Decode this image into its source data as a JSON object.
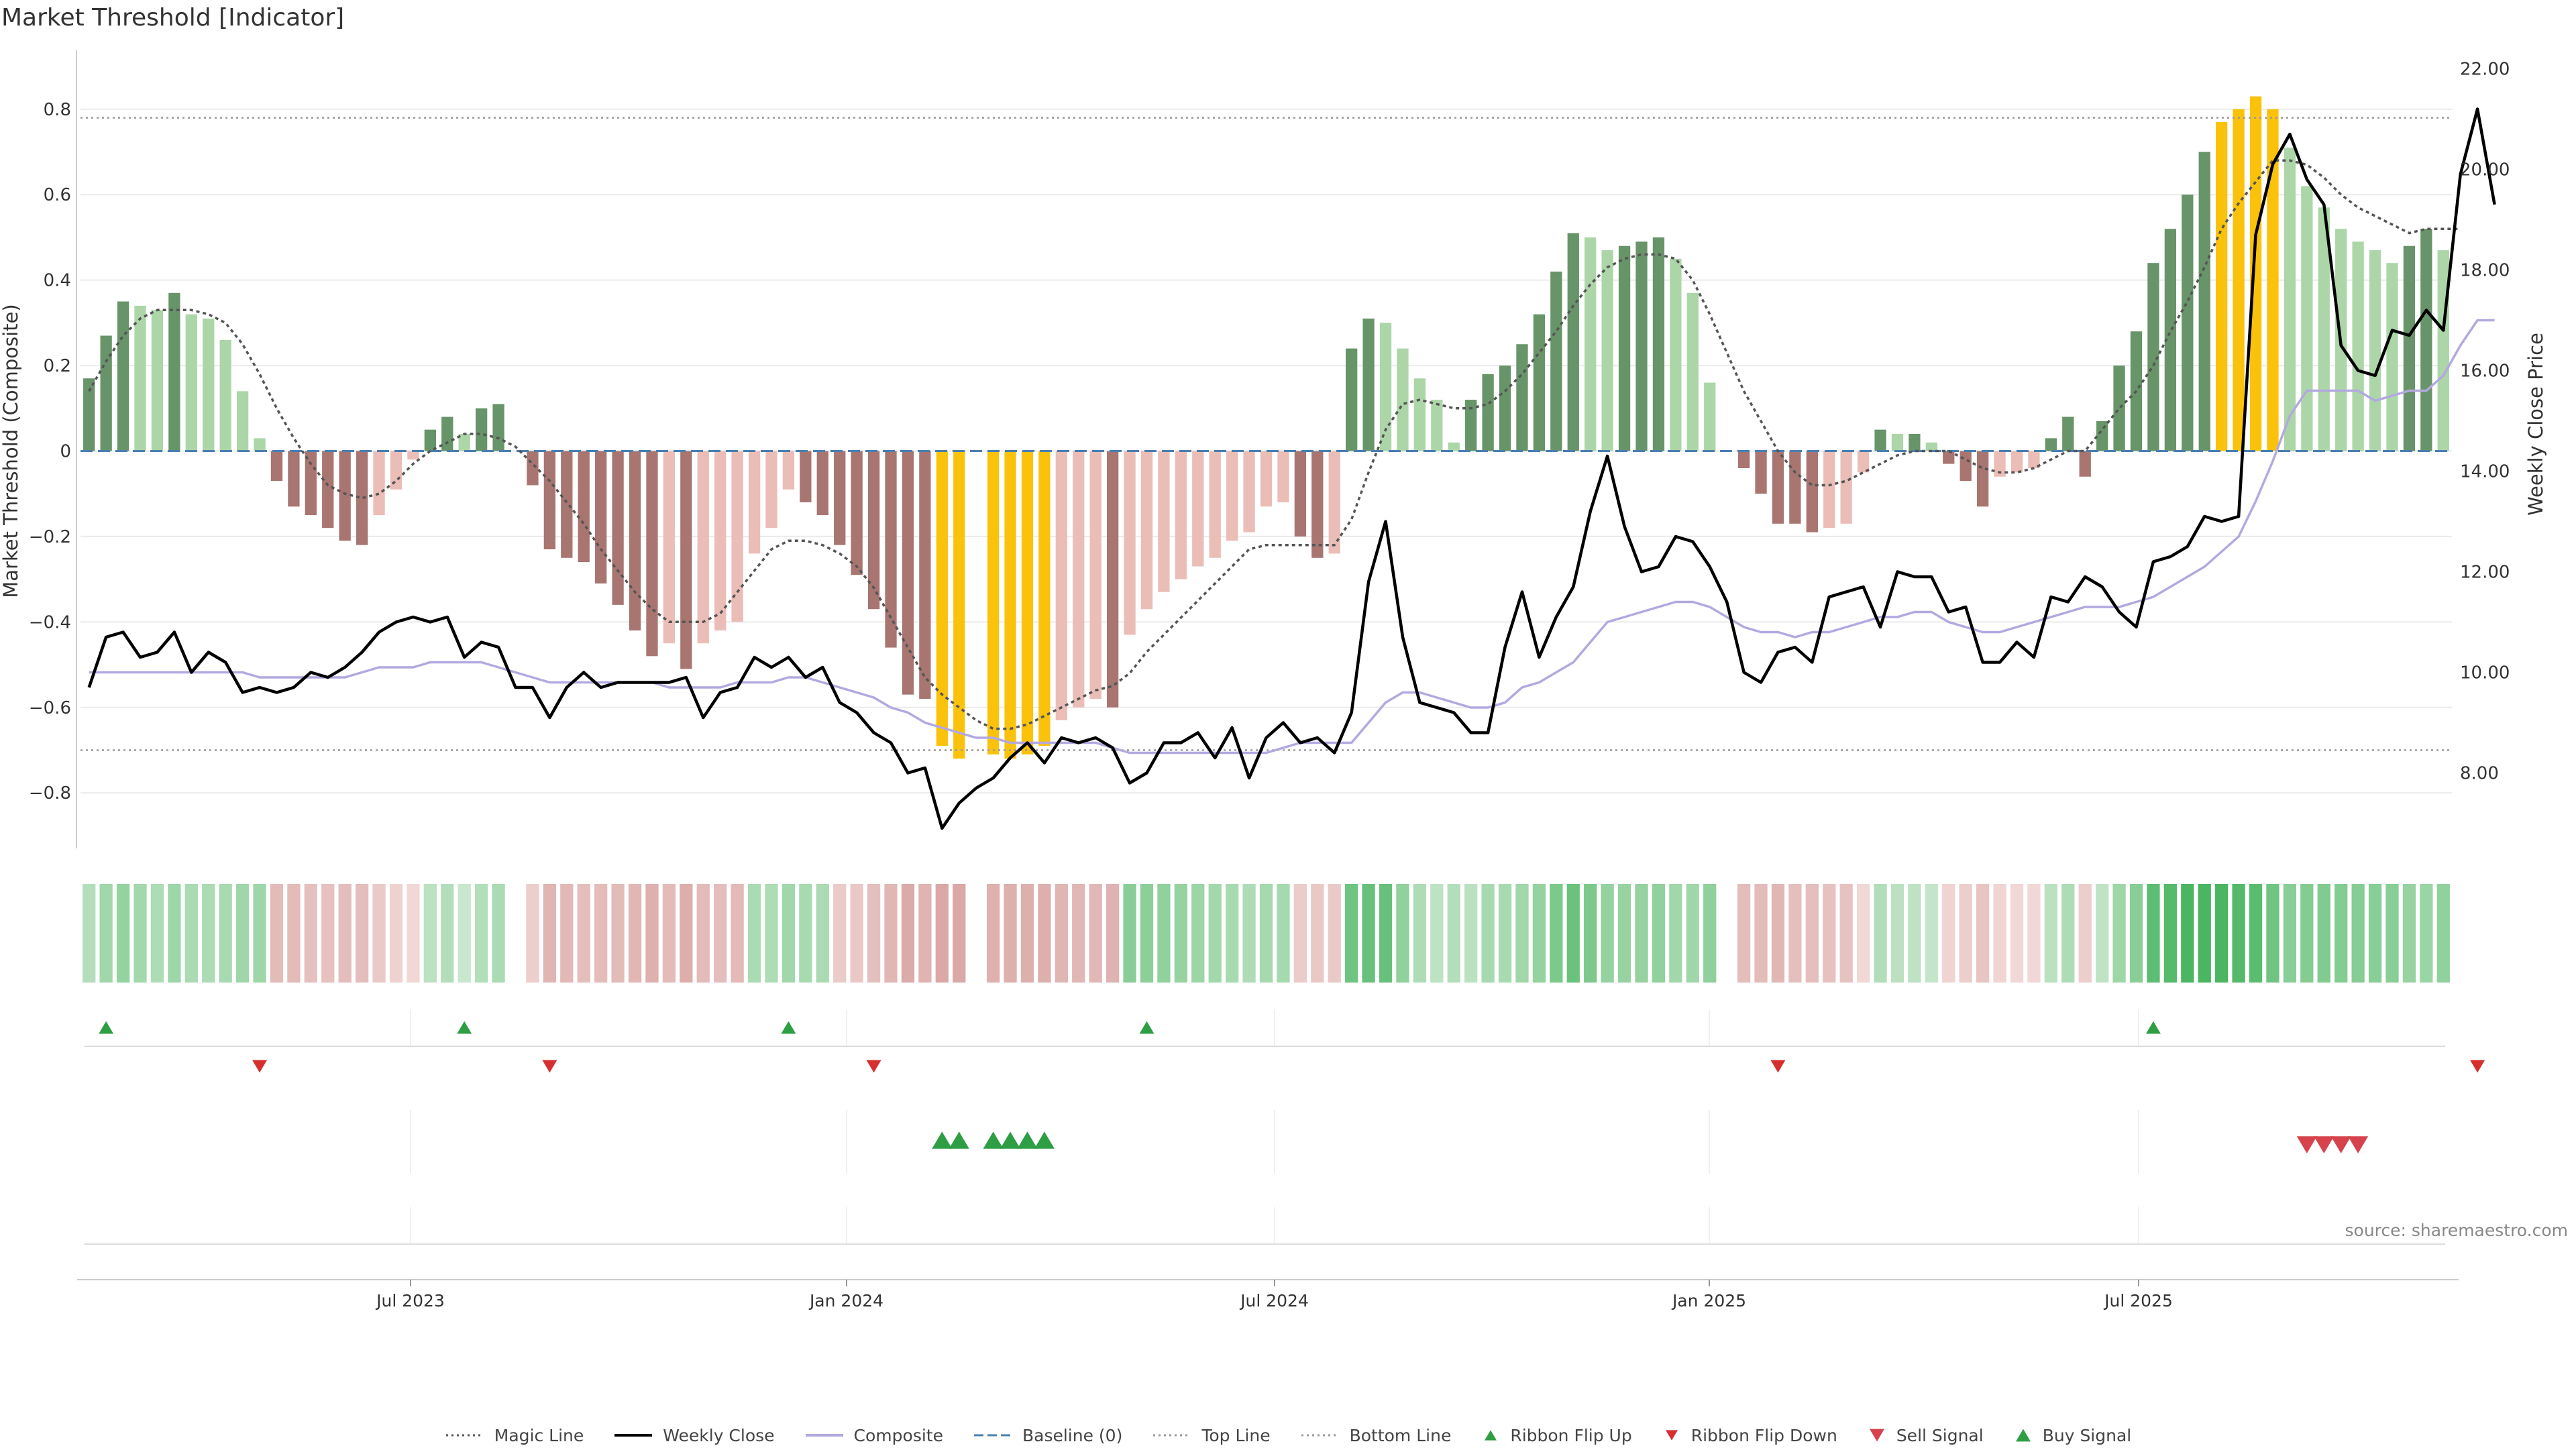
{
  "title": "Market Threshold [Indicator]",
  "source_text": "source: sharemaestro.com",
  "legend": [
    {
      "label": "Magic Line",
      "kind": "dotted",
      "color": "#555555"
    },
    {
      "label": "Weekly Close",
      "kind": "line",
      "color": "#000000"
    },
    {
      "label": "Composite",
      "kind": "line",
      "color": "#b3a8e0"
    },
    {
      "label": "Baseline (0)",
      "kind": "dashed",
      "color": "#4a7fb0"
    },
    {
      "label": "Top Line",
      "kind": "dotted",
      "color": "#999999"
    },
    {
      "label": "Bottom Line",
      "kind": "dotted",
      "color": "#999999"
    },
    {
      "label": "Ribbon Flip Up",
      "kind": "tri-up-small",
      "color": "#2e9e44"
    },
    {
      "label": "Ribbon Flip Down",
      "kind": "tri-down-small",
      "color": "#d62f2f"
    },
    {
      "label": "Sell Signal",
      "kind": "tri-down",
      "color": "#d6434d"
    },
    {
      "label": "Buy Signal",
      "kind": "tri-up",
      "color": "#2e9e44"
    }
  ],
  "chart_data": {
    "type": "bar",
    "ylabel": "Market Threshold (Composite)",
    "y2label": "Weekly Close Price",
    "ylim": [
      -0.93,
      0.93
    ],
    "y2lim": [
      6.5,
      22.3
    ],
    "yticks": [
      "0.8",
      "0.6",
      "0.4",
      "0.2",
      "0",
      "−0.2",
      "−0.4",
      "−0.6",
      "−0.8"
    ],
    "y2ticks": [
      "22.00",
      "20.00",
      "18.00",
      "16.00",
      "14.00",
      "12.00",
      "10.00",
      "8.00"
    ],
    "x_dates": [
      "Jul 2023",
      "Jan 2024",
      "Jul 2024",
      "Jan 2025",
      "Jul 2025"
    ],
    "top_line": 0.78,
    "bottom_line": -0.7,
    "composite_bars": [
      0.17,
      0.27,
      0.35,
      0.34,
      0.33,
      0.37,
      0.32,
      0.31,
      0.26,
      0.14,
      0.03,
      -0.07,
      -0.13,
      -0.15,
      -0.18,
      -0.21,
      -0.22,
      -0.15,
      -0.09,
      -0.02,
      0.05,
      0.08,
      0.04,
      0.1,
      0.11,
      0.0,
      -0.08,
      -0.23,
      -0.25,
      -0.26,
      -0.31,
      -0.36,
      -0.42,
      -0.48,
      -0.45,
      -0.51,
      -0.45,
      -0.42,
      -0.4,
      -0.24,
      -0.18,
      -0.09,
      -0.12,
      -0.15,
      -0.22,
      -0.29,
      -0.37,
      -0.46,
      -0.57,
      -0.58,
      -0.69,
      -0.72,
      0.0,
      -0.71,
      -0.72,
      -0.71,
      -0.69,
      -0.63,
      -0.6,
      -0.58,
      -0.6,
      -0.43,
      -0.37,
      -0.33,
      -0.3,
      -0.27,
      -0.25,
      -0.21,
      -0.19,
      -0.13,
      -0.12,
      -0.2,
      -0.25,
      -0.24,
      0.24,
      0.31,
      0.3,
      0.24,
      0.17,
      0.12,
      0.02,
      0.12,
      0.18,
      0.2,
      0.25,
      0.32,
      0.42,
      0.51,
      0.5,
      0.47,
      0.48,
      0.49,
      0.5,
      0.45,
      0.37,
      0.16,
      0.0,
      -0.04,
      -0.1,
      -0.17,
      -0.17,
      -0.19,
      -0.18,
      -0.17,
      -0.05,
      0.05,
      0.04,
      0.04,
      0.02,
      -0.03,
      -0.07,
      -0.13,
      -0.06,
      -0.05,
      -0.04,
      0.03,
      0.08,
      -0.06,
      0.07,
      0.2,
      0.28,
      0.44,
      0.52,
      0.6,
      0.7,
      0.77,
      0.8,
      0.83,
      0.8,
      0.71,
      0.62,
      0.57,
      0.52,
      0.49,
      0.47,
      0.44,
      0.48,
      0.52,
      0.47
    ],
    "magic_line": [
      0.14,
      0.21,
      0.27,
      0.31,
      0.33,
      0.33,
      0.33,
      0.32,
      0.3,
      0.25,
      0.18,
      0.1,
      0.03,
      -0.03,
      -0.08,
      -0.1,
      -0.11,
      -0.1,
      -0.07,
      -0.03,
      0.0,
      0.02,
      0.04,
      0.04,
      0.03,
      0.01,
      -0.03,
      -0.07,
      -0.12,
      -0.17,
      -0.23,
      -0.28,
      -0.33,
      -0.37,
      -0.4,
      -0.4,
      -0.4,
      -0.38,
      -0.33,
      -0.28,
      -0.23,
      -0.21,
      -0.21,
      -0.22,
      -0.24,
      -0.27,
      -0.32,
      -0.39,
      -0.46,
      -0.53,
      -0.57,
      -0.6,
      -0.63,
      -0.65,
      -0.65,
      -0.64,
      -0.62,
      -0.6,
      -0.58,
      -0.56,
      -0.55,
      -0.52,
      -0.47,
      -0.43,
      -0.39,
      -0.35,
      -0.31,
      -0.27,
      -0.23,
      -0.22,
      -0.22,
      -0.22,
      -0.22,
      -0.22,
      -0.16,
      -0.05,
      0.05,
      0.11,
      0.12,
      0.11,
      0.1,
      0.1,
      0.11,
      0.14,
      0.18,
      0.23,
      0.28,
      0.34,
      0.39,
      0.43,
      0.45,
      0.46,
      0.46,
      0.45,
      0.4,
      0.32,
      0.23,
      0.14,
      0.07,
      0.0,
      -0.05,
      -0.08,
      -0.08,
      -0.07,
      -0.05,
      -0.03,
      -0.01,
      0.0,
      0.0,
      0.0,
      -0.02,
      -0.04,
      -0.05,
      -0.05,
      -0.04,
      -0.02,
      0.0,
      0.0,
      0.05,
      0.1,
      0.14,
      0.2,
      0.28,
      0.35,
      0.43,
      0.52,
      0.58,
      0.63,
      0.68,
      0.68,
      0.67,
      0.64,
      0.6,
      0.57,
      0.55,
      0.53,
      0.51,
      0.52,
      0.52,
      0.52
    ],
    "weekly_close": [
      9.7,
      10.7,
      10.8,
      10.3,
      10.4,
      10.8,
      10.0,
      10.4,
      10.2,
      9.6,
      9.7,
      9.6,
      9.7,
      10.0,
      9.9,
      10.1,
      10.4,
      10.8,
      11.0,
      11.1,
      11.0,
      11.1,
      10.3,
      10.6,
      10.5,
      9.7,
      9.7,
      9.1,
      9.7,
      10.0,
      9.7,
      9.8,
      9.8,
      9.8,
      9.8,
      9.9,
      9.1,
      9.6,
      9.7,
      10.3,
      10.1,
      10.3,
      9.9,
      10.1,
      9.4,
      9.2,
      8.8,
      8.6,
      8.0,
      8.1,
      6.9,
      7.4,
      7.7,
      7.9,
      8.3,
      8.6,
      8.2,
      8.7,
      8.6,
      8.7,
      8.5,
      7.8,
      8.0,
      8.6,
      8.6,
      8.8,
      8.3,
      8.9,
      7.9,
      8.7,
      9.0,
      8.6,
      8.7,
      8.4,
      9.2,
      11.8,
      13.0,
      10.7,
      9.4,
      9.3,
      9.2,
      8.8,
      8.8,
      10.5,
      11.6,
      10.3,
      11.1,
      11.7,
      13.2,
      14.3,
      12.9,
      12.0,
      12.1,
      12.7,
      12.6,
      12.1,
      11.4,
      10.0,
      9.8,
      10.4,
      10.5,
      10.2,
      11.5,
      11.6,
      11.7,
      10.9,
      12.0,
      11.9,
      11.9,
      11.2,
      11.3,
      10.2,
      10.2,
      10.6,
      10.3,
      11.5,
      11.4,
      11.9,
      11.7,
      11.2,
      10.9,
      12.2,
      12.3,
      12.5,
      13.1,
      13.0,
      13.1,
      18.7,
      20.1,
      20.7,
      19.8,
      19.3,
      16.5,
      16.0,
      15.9,
      16.8,
      16.7,
      17.2,
      16.8,
      19.9,
      21.2,
      19.3
    ],
    "composite_line": [
      10.0,
      10.0,
      10.0,
      10.0,
      10.0,
      10.0,
      10.0,
      10.0,
      10.0,
      10.0,
      9.9,
      9.9,
      9.9,
      9.9,
      9.9,
      9.9,
      10.0,
      10.1,
      10.1,
      10.1,
      10.2,
      10.2,
      10.2,
      10.2,
      10.1,
      10.0,
      9.9,
      9.8,
      9.8,
      9.8,
      9.8,
      9.8,
      9.8,
      9.8,
      9.7,
      9.7,
      9.7,
      9.7,
      9.8,
      9.8,
      9.8,
      9.9,
      9.9,
      9.8,
      9.7,
      9.6,
      9.5,
      9.3,
      9.2,
      9.0,
      8.9,
      8.8,
      8.7,
      8.7,
      8.6,
      8.6,
      8.6,
      8.6,
      8.6,
      8.6,
      8.5,
      8.4,
      8.4,
      8.4,
      8.4,
      8.4,
      8.4,
      8.4,
      8.4,
      8.4,
      8.5,
      8.6,
      8.6,
      8.6,
      8.6,
      9.0,
      9.4,
      9.6,
      9.6,
      9.5,
      9.4,
      9.3,
      9.3,
      9.4,
      9.7,
      9.8,
      10.0,
      10.2,
      10.6,
      11.0,
      11.1,
      11.2,
      11.3,
      11.4,
      11.4,
      11.3,
      11.1,
      10.9,
      10.8,
      10.8,
      10.7,
      10.8,
      10.8,
      10.9,
      11.0,
      11.1,
      11.1,
      11.2,
      11.2,
      11.0,
      10.9,
      10.8,
      10.8,
      10.9,
      11.0,
      11.1,
      11.2,
      11.3,
      11.3,
      11.3,
      11.4,
      11.5,
      11.7,
      11.9,
      12.1,
      12.4,
      12.7,
      13.4,
      14.2,
      15.1,
      15.6,
      15.6,
      15.6,
      15.6,
      15.4,
      15.5,
      15.6,
      15.6,
      15.9,
      16.5,
      17.0,
      17.0
    ],
    "ribbon_flip_up": [
      1,
      22,
      41,
      62,
      121
    ],
    "ribbon_flip_down": [
      10,
      27,
      46,
      99,
      140
    ],
    "buy_signal": [
      50,
      51,
      53,
      54,
      55,
      56
    ],
    "sell_signal": [
      130,
      131,
      132,
      133
    ]
  }
}
